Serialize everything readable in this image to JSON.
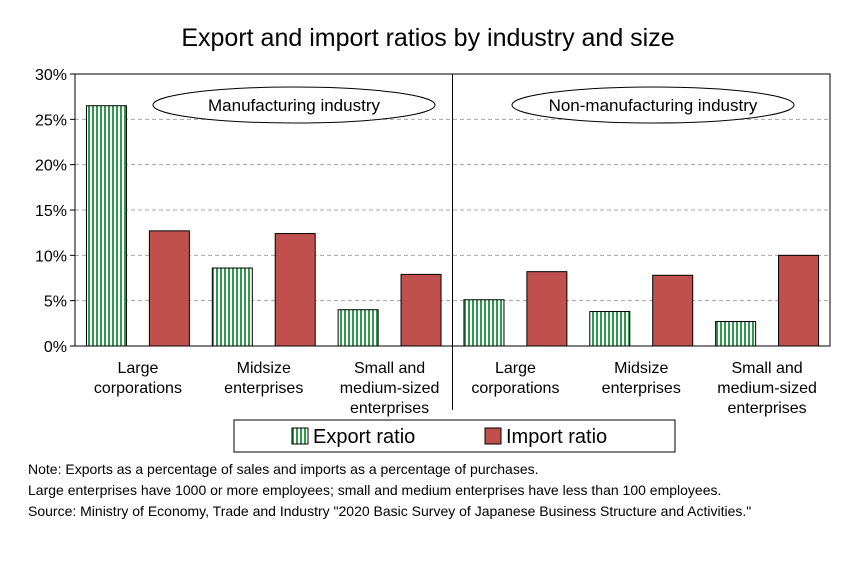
{
  "chart_data": {
    "type": "bar",
    "title": "Export and import ratios by industry and size",
    "xlabel": "",
    "ylabel": "",
    "ylim": [
      0,
      0.3
    ],
    "yticks": [
      "0%",
      "5%",
      "10%",
      "15%",
      "20%",
      "25%",
      "30%"
    ],
    "grid": true,
    "legend_position": "bottom",
    "groups": [
      "Manufacturing industry",
      "Non-manufacturing industry"
    ],
    "categories": [
      [
        "Large",
        "corporations"
      ],
      [
        "Midsize",
        "enterprises"
      ],
      [
        "Small and",
        "medium-sized",
        "enterprises"
      ],
      [
        "Large",
        "corporations"
      ],
      [
        "Midsize",
        "enterprises"
      ],
      [
        "Small and",
        "medium-sized",
        "enterprises"
      ]
    ],
    "series": [
      {
        "name": "Export ratio",
        "values": [
          0.265,
          0.086,
          0.04,
          0.051,
          0.038,
          0.027
        ],
        "color": "#2e9a4b",
        "pattern": "vertical-stripes"
      },
      {
        "name": "Import ratio",
        "values": [
          0.127,
          0.124,
          0.079,
          0.082,
          0.078,
          0.1
        ],
        "color": "#c0504d"
      }
    ]
  },
  "notes": [
    "Note: Exports as a percentage of sales and imports as a percentage of purchases.",
    "Large enterprises have 1000 or more employees; small and medium enterprises have less than 100 employees.",
    "Source: Ministry of Economy, Trade and Industry \"2020 Basic Survey of Japanese Business Structure and Activities.\""
  ]
}
